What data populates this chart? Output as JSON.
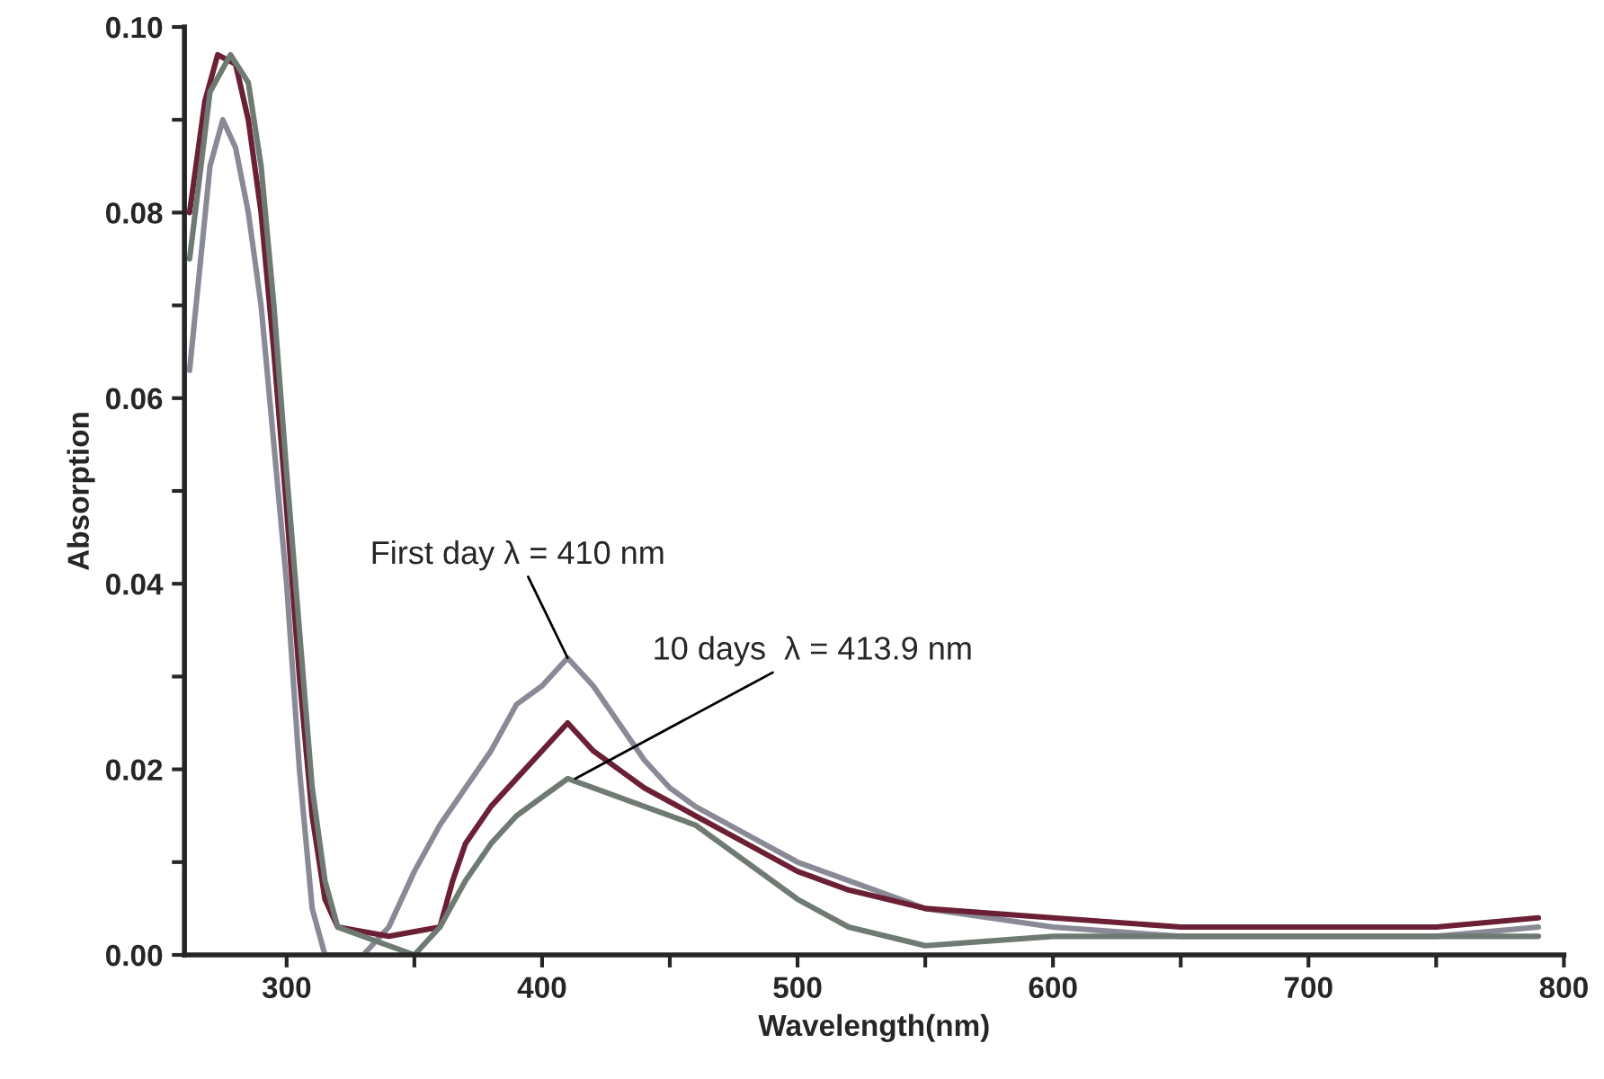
{
  "chart_data": {
    "type": "line",
    "xlabel": "Wavelength(nm)",
    "ylabel": "Absorption",
    "xlim": [
      260,
      800
    ],
    "ylim": [
      0,
      0.1
    ],
    "xticks": [
      300,
      {
        "value": 350,
        "label": null
      },
      400,
      {
        "value": 450,
        "label": null
      },
      500,
      {
        "value": 550,
        "label": null
      },
      600,
      {
        "value": 650,
        "label": null
      },
      700,
      {
        "value": 750,
        "label": null
      },
      800
    ],
    "yticks": [
      {
        "value": 0,
        "label": "0.00"
      },
      {
        "value": 0.01,
        "label": null
      },
      {
        "value": 0.02,
        "label": "0.02"
      },
      {
        "value": 0.03,
        "label": null
      },
      {
        "value": 0.04,
        "label": "0.04"
      },
      {
        "value": 0.05,
        "label": null
      },
      {
        "value": 0.06,
        "label": "0.06"
      },
      {
        "value": 0.07,
        "label": null
      },
      {
        "value": 0.08,
        "label": "0.08"
      },
      {
        "value": 0.09,
        "label": null
      },
      {
        "value": 0.1,
        "label": "0.10"
      }
    ],
    "grid": false,
    "legend": false,
    "line_style": "solid",
    "marker": "none",
    "annotations": [
      {
        "text": "First day λ = 410 nm",
        "x": 410,
        "y": 0.032
      },
      {
        "text": "10 days  λ = 413.9 nm",
        "x": 413,
        "y": 0.019
      }
    ],
    "series": [
      {
        "color": "#8a8a96",
        "x": [
          262,
          270,
          275,
          280,
          285,
          290,
          295,
          300,
          305,
          310,
          315,
          330,
          340,
          350,
          360,
          370,
          380,
          390,
          400,
          410,
          420,
          430,
          440,
          450,
          460,
          480,
          500,
          520,
          550,
          600,
          650,
          700,
          750,
          790
        ],
        "values": [
          0.063,
          0.085,
          0.09,
          0.087,
          0.08,
          0.07,
          0.055,
          0.04,
          0.02,
          0.005,
          0.0,
          0.0,
          0.003,
          0.009,
          0.014,
          0.018,
          0.022,
          0.027,
          0.029,
          0.032,
          0.029,
          0.025,
          0.021,
          0.018,
          0.016,
          0.013,
          0.01,
          0.008,
          0.005,
          0.003,
          0.002,
          0.002,
          0.002,
          0.003
        ]
      },
      {
        "color": "#6b2035",
        "x": [
          262,
          268,
          273,
          280,
          285,
          290,
          295,
          300,
          305,
          310,
          315,
          320,
          340,
          360,
          365,
          370,
          380,
          390,
          400,
          410,
          420,
          430,
          440,
          460,
          480,
          500,
          520,
          550,
          600,
          650,
          700,
          750,
          790
        ],
        "values": [
          0.08,
          0.092,
          0.097,
          0.096,
          0.09,
          0.08,
          0.065,
          0.048,
          0.03,
          0.015,
          0.006,
          0.003,
          0.002,
          0.003,
          0.008,
          0.012,
          0.016,
          0.019,
          0.022,
          0.025,
          0.022,
          0.02,
          0.018,
          0.015,
          0.012,
          0.009,
          0.007,
          0.005,
          0.004,
          0.003,
          0.003,
          0.003,
          0.004
        ]
      },
      {
        "color": "#6e7a72",
        "x": [
          262,
          270,
          278,
          285,
          290,
          295,
          300,
          305,
          310,
          315,
          320,
          350,
          360,
          370,
          380,
          390,
          400,
          410,
          420,
          440,
          460,
          480,
          500,
          520,
          550,
          600,
          650,
          700,
          790
        ],
        "values": [
          0.075,
          0.093,
          0.097,
          0.094,
          0.085,
          0.07,
          0.052,
          0.035,
          0.018,
          0.008,
          0.003,
          0.0,
          0.003,
          0.008,
          0.012,
          0.015,
          0.017,
          0.019,
          0.018,
          0.016,
          0.014,
          0.01,
          0.006,
          0.003,
          0.001,
          0.002,
          0.002,
          0.002,
          0.002
        ]
      }
    ]
  }
}
